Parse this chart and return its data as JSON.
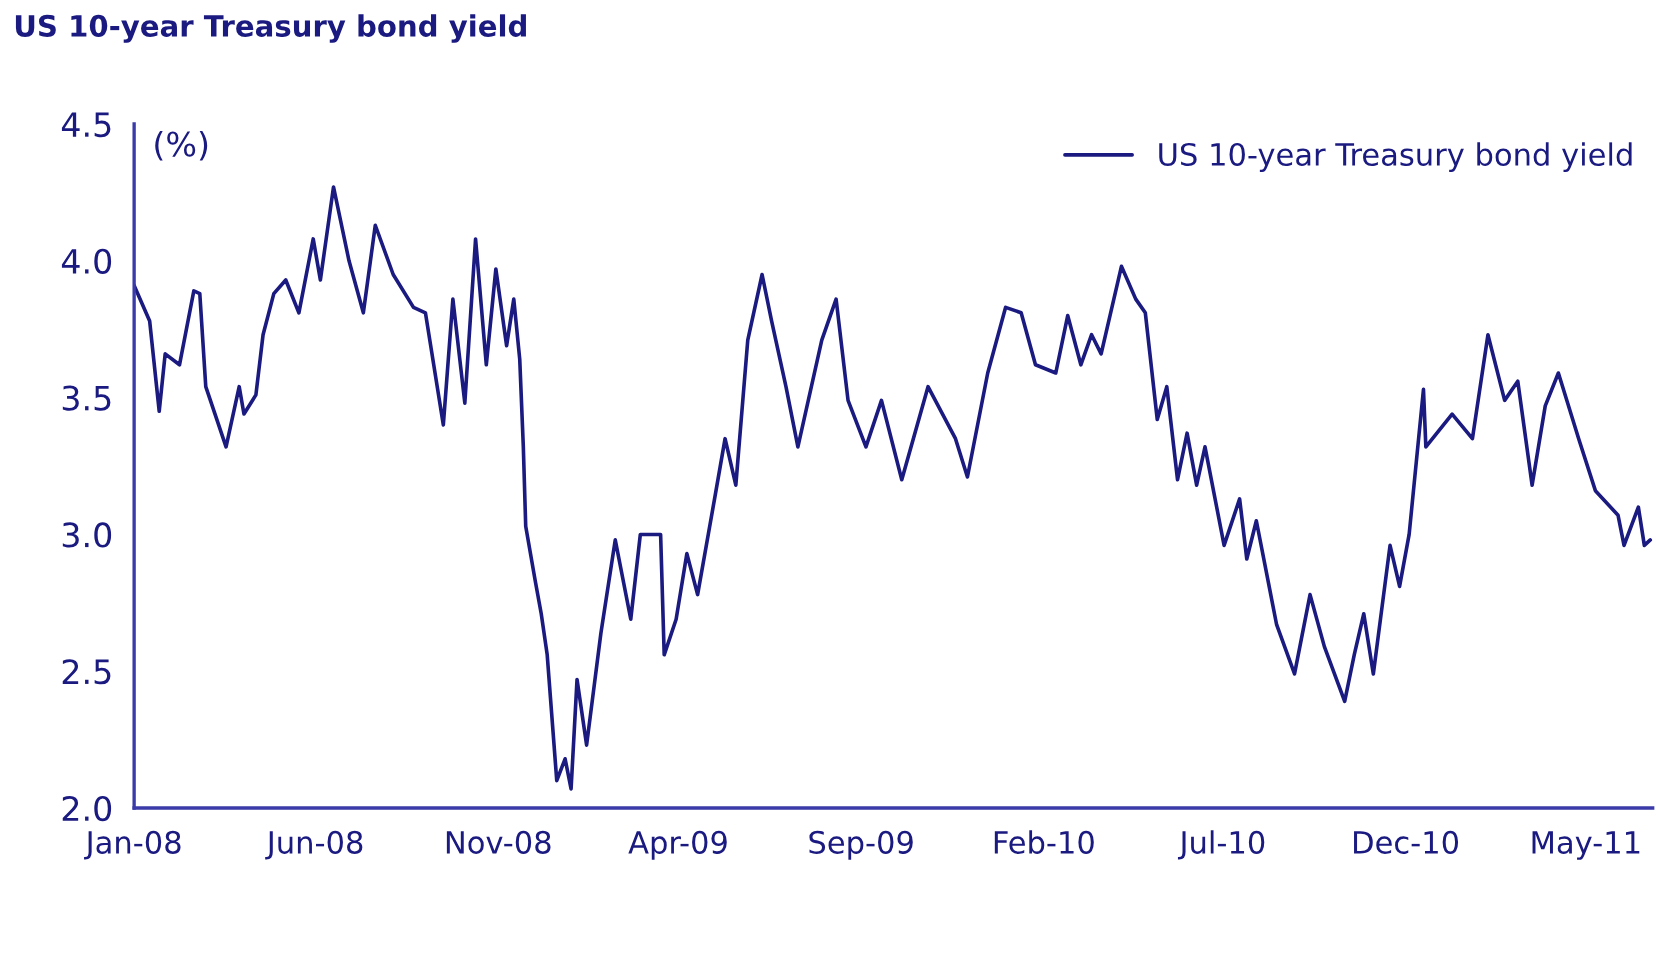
{
  "chart_data": {
    "type": "line",
    "title": "US 10-year Treasury bond yield",
    "ylabel": "(%)",
    "x": [
      "2008-01-01",
      "2008-01-14",
      "2008-01-22",
      "2008-01-27",
      "2008-02-08",
      "2008-02-20",
      "2008-02-25",
      "2008-03-01",
      "2008-03-18",
      "2008-03-29",
      "2008-04-02",
      "2008-04-12",
      "2008-04-18",
      "2008-04-27",
      "2008-05-07",
      "2008-05-18",
      "2008-05-30",
      "2008-06-05",
      "2008-06-16",
      "2008-06-29",
      "2008-07-11",
      "2008-07-21",
      "2008-08-05",
      "2008-08-22",
      "2008-09-01",
      "2008-09-16",
      "2008-09-24",
      "2008-10-04",
      "2008-10-13",
      "2008-10-22",
      "2008-10-30",
      "2008-11-08",
      "2008-11-14",
      "2008-11-19",
      "2008-11-22",
      "2008-11-24",
      "2008-12-02",
      "2008-12-07",
      "2008-12-12",
      "2008-12-20",
      "2008-12-27",
      "2009-01-01",
      "2009-01-06",
      "2009-01-14",
      "2009-01-26",
      "2009-02-07",
      "2009-02-20",
      "2009-02-28",
      "2009-03-17",
      "2009-03-20",
      "2009-03-30",
      "2009-04-08",
      "2009-04-17",
      "2009-05-02",
      "2009-05-10",
      "2009-05-19",
      "2009-05-29",
      "2009-06-10",
      "2009-06-18",
      "2009-06-30",
      "2009-07-10",
      "2009-07-30",
      "2009-08-11",
      "2009-08-21",
      "2009-09-05",
      "2009-09-18",
      "2009-10-05",
      "2009-10-27",
      "2009-11-19",
      "2009-11-29",
      "2009-12-16",
      "2009-12-31",
      "2010-01-13",
      "2010-01-25",
      "2010-02-11",
      "2010-02-21",
      "2010-03-04",
      "2010-03-13",
      "2010-03-21",
      "2010-04-07",
      "2010-04-19",
      "2010-04-27",
      "2010-05-07",
      "2010-05-15",
      "2010-05-24",
      "2010-06-01",
      "2010-06-09",
      "2010-06-16",
      "2010-07-02",
      "2010-07-15",
      "2010-07-21",
      "2010-07-29",
      "2010-08-15",
      "2010-08-30",
      "2010-09-12",
      "2010-09-24",
      "2010-10-11",
      "2010-10-19",
      "2010-10-27",
      "2010-11-04",
      "2010-11-18",
      "2010-11-26",
      "2010-12-04",
      "2010-12-16",
      "2010-12-18",
      "2011-01-09",
      "2011-01-26",
      "2011-02-08",
      "2011-02-22",
      "2011-03-05",
      "2011-03-17",
      "2011-03-28",
      "2011-04-08",
      "2011-04-25",
      "2011-05-09",
      "2011-05-28",
      "2011-06-02",
      "2011-06-14",
      "2011-06-19",
      "2011-06-24"
    ],
    "series": [
      {
        "name": "US 10-year Treasury bond yield",
        "color": "#1a1a80",
        "values": [
          3.91,
          3.78,
          3.45,
          3.66,
          3.62,
          3.89,
          3.88,
          3.54,
          3.32,
          3.54,
          3.44,
          3.51,
          3.73,
          3.88,
          3.93,
          3.81,
          4.08,
          3.93,
          4.27,
          4.0,
          3.81,
          4.13,
          3.95,
          3.83,
          3.81,
          3.4,
          3.86,
          3.48,
          4.08,
          3.62,
          3.97,
          3.69,
          3.86,
          3.64,
          3.32,
          3.03,
          2.83,
          2.71,
          2.56,
          2.1,
          2.18,
          2.07,
          2.47,
          2.23,
          2.64,
          2.98,
          2.69,
          3.0,
          3.0,
          2.56,
          2.69,
          2.93,
          2.78,
          3.15,
          3.35,
          3.18,
          3.71,
          3.95,
          3.78,
          3.54,
          3.32,
          3.71,
          3.86,
          3.49,
          3.32,
          3.49,
          3.2,
          3.54,
          3.35,
          3.21,
          3.59,
          3.83,
          3.81,
          3.62,
          3.59,
          3.8,
          3.62,
          3.73,
          3.66,
          3.98,
          3.86,
          3.81,
          3.42,
          3.54,
          3.2,
          3.37,
          3.18,
          3.32,
          2.96,
          3.13,
          2.91,
          3.05,
          2.67,
          2.49,
          2.78,
          2.59,
          2.39,
          2.56,
          2.71,
          2.49,
          2.96,
          2.81,
          3.0,
          3.53,
          3.32,
          3.44,
          3.35,
          3.73,
          3.49,
          3.56,
          3.18,
          3.47,
          3.59,
          3.35,
          3.16,
          3.07,
          2.96,
          3.1,
          2.96,
          2.98
        ]
      }
    ],
    "xlim": [
      "2008-01-01",
      "2011-06-26"
    ],
    "xticks": [
      {
        "value": "2008-01-01",
        "label": "Jan-08"
      },
      {
        "value": "2008-06-01",
        "label": "Jun-08"
      },
      {
        "value": "2008-11-01",
        "label": "Nov-08"
      },
      {
        "value": "2009-04-01",
        "label": "Apr-09"
      },
      {
        "value": "2009-09-01",
        "label": "Sep-09"
      },
      {
        "value": "2010-02-01",
        "label": "Feb-10"
      },
      {
        "value": "2010-07-01",
        "label": "Jul-10"
      },
      {
        "value": "2010-12-01",
        "label": "Dec-10"
      },
      {
        "value": "2011-05-01",
        "label": "May-11"
      }
    ],
    "ylim": [
      2.0,
      4.5
    ],
    "yticks": [
      {
        "value": 2.0,
        "label": "2.0"
      },
      {
        "value": 2.5,
        "label": "2.5"
      },
      {
        "value": 3.0,
        "label": "3.0"
      },
      {
        "value": 3.5,
        "label": "3.5"
      },
      {
        "value": 4.0,
        "label": "4.0"
      },
      {
        "value": 4.5,
        "label": "4.5"
      }
    ],
    "grid": false,
    "legend": "top right",
    "line_style": "solid",
    "marker": "none"
  }
}
